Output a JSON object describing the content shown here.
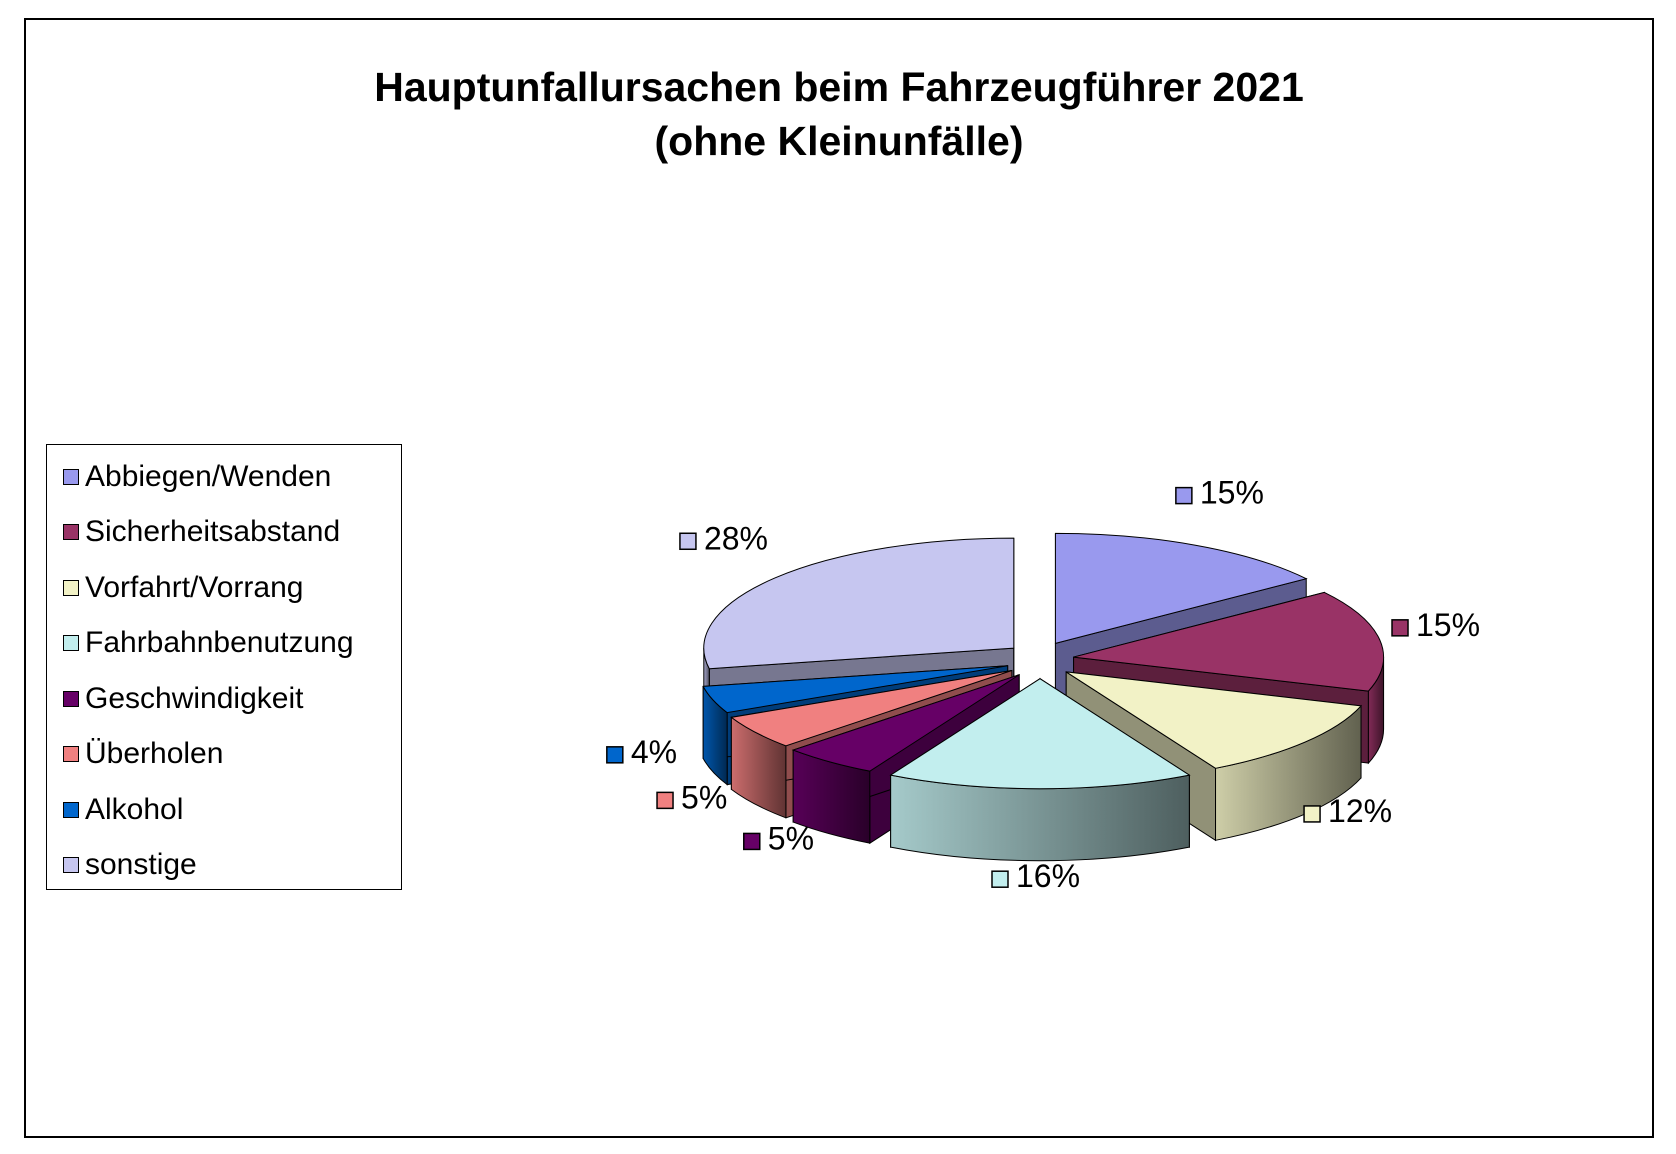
{
  "chart_data": {
    "type": "pie",
    "title_lines": [
      "Hauptunfallursachen beim Fahrzeugführer 2021",
      "(ohne Kleinunfälle)"
    ],
    "legend_position": "left",
    "slices": [
      {
        "name": "Abbiegen/Wenden",
        "value": 15,
        "label": "15%",
        "color": "#9999ee"
      },
      {
        "name": "Sicherheitsabstand",
        "value": 15,
        "label": "15%",
        "color": "#993366"
      },
      {
        "name": "Vorfahrt/Vorrang",
        "value": 12,
        "label": "12%",
        "color": "#f2f2c6"
      },
      {
        "name": "Fahrbahnbenutzung",
        "value": 16,
        "label": "16%",
        "color": "#c2eeee"
      },
      {
        "name": "Geschwindigkeit",
        "value": 5,
        "label": "5%",
        "color": "#660066"
      },
      {
        "name": "Überholen",
        "value": 5,
        "label": "5%",
        "color": "#f08080"
      },
      {
        "name": "Alkohol",
        "value": 4,
        "label": "4%",
        "color": "#0066cc"
      },
      {
        "name": "sonstige",
        "value": 28,
        "label": "28%",
        "color": "#c6c6f0"
      }
    ]
  }
}
